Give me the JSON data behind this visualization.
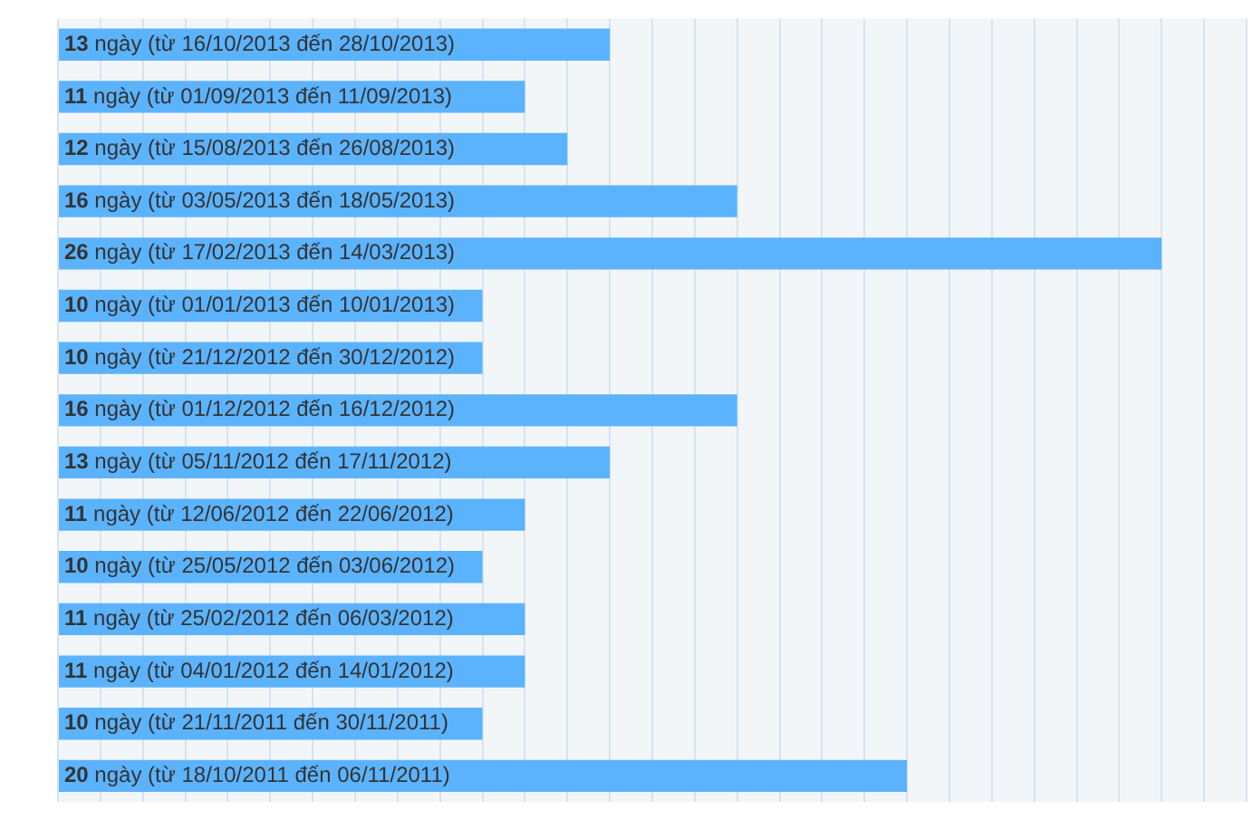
{
  "chart_data": {
    "type": "bar",
    "orientation": "horizontal",
    "categories": [
      null,
      null,
      null,
      null,
      null,
      null,
      null,
      null,
      null,
      null,
      null,
      null,
      null,
      null,
      null
    ],
    "values": [
      13,
      11,
      12,
      16,
      26,
      10,
      10,
      16,
      13,
      11,
      10,
      11,
      11,
      10,
      20
    ],
    "value_labels": [
      "13 ngày (từ 16/10/2013 đến 28/10/2013)",
      "11 ngày (từ 01/09/2013 đến 11/09/2013)",
      "12 ngày (từ 15/08/2013 đến 26/08/2013)",
      "16 ngày (từ 03/05/2013 đến 18/05/2013)",
      "26 ngày (từ 17/02/2013 đến 14/03/2013)",
      "10 ngày (từ 01/01/2013 đến 10/01/2013)",
      "10 ngày (từ 21/12/2012 đến 30/12/2012)",
      "16 ngày (từ 01/12/2012 đến 16/12/2012)",
      "13 ngày (từ 05/11/2012 đến 17/11/2012)",
      "11 ngày (từ 12/06/2012 đến 22/06/2012)",
      "10 ngày (từ 25/05/2012 đến 03/06/2012)",
      "11 ngày (từ 25/02/2012 đến 06/03/2012)",
      "11 ngày (từ 04/01/2012 đến 14/01/2012)",
      "10 ngày (từ 21/11/2011 đến 30/11/2011)",
      "20 ngày (từ 18/10/2011 đến 06/11/2011)"
    ],
    "color": "#5cb3fd",
    "xlim": [
      0,
      28
    ],
    "xticks": [
      {
        "value": 0,
        "label": null
      },
      {
        "value": 1,
        "label": null
      },
      {
        "value": 2,
        "label": null
      },
      {
        "value": 3,
        "label": null
      },
      {
        "value": 4,
        "label": null
      },
      {
        "value": 5,
        "label": null
      },
      {
        "value": 6,
        "label": null
      },
      {
        "value": 7,
        "label": null
      },
      {
        "value": 8,
        "label": null
      },
      {
        "value": 9,
        "label": null
      },
      {
        "value": 10,
        "label": null
      },
      {
        "value": 11,
        "label": null
      },
      {
        "value": 12,
        "label": null
      },
      {
        "value": 13,
        "label": null
      },
      {
        "value": 14,
        "label": null
      },
      {
        "value": 15,
        "label": null
      },
      {
        "value": 16,
        "label": null
      },
      {
        "value": 17,
        "label": null
      },
      {
        "value": 18,
        "label": null
      },
      {
        "value": 19,
        "label": null
      },
      {
        "value": 20,
        "label": null
      },
      {
        "value": 21,
        "label": null
      },
      {
        "value": 22,
        "label": null
      },
      {
        "value": 23,
        "label": null
      },
      {
        "value": 24,
        "label": null
      },
      {
        "value": 25,
        "label": null
      },
      {
        "value": 26,
        "label": null
      },
      {
        "value": 27,
        "label": null
      },
      {
        "value": 28,
        "label": null
      }
    ],
    "grid": "x",
    "legend": false
  }
}
